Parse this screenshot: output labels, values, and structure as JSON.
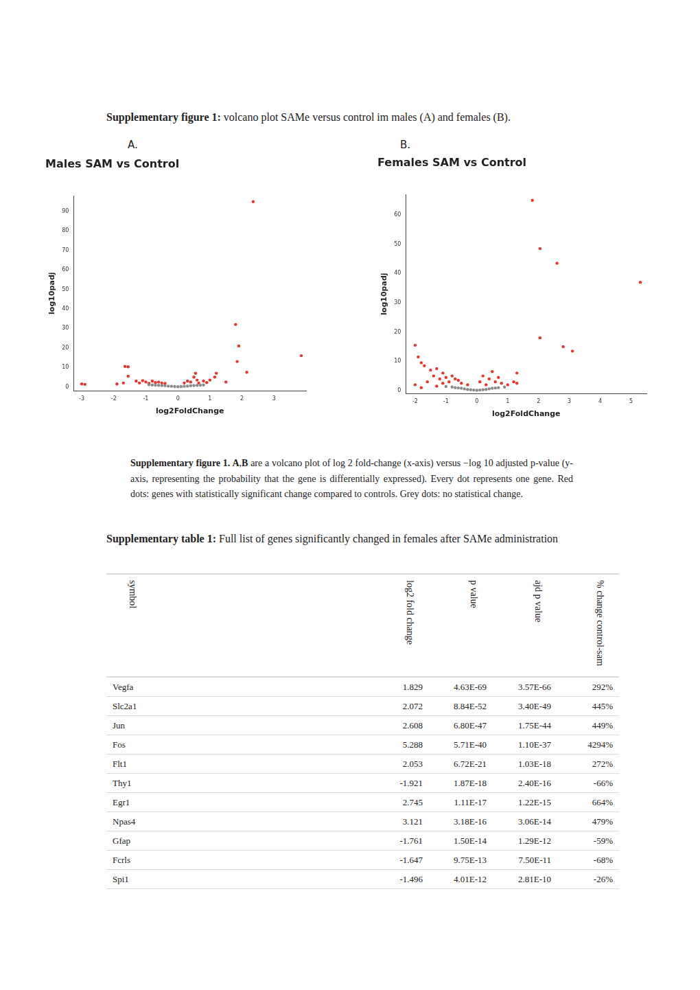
{
  "heading": {
    "bold": "Supplementary figure 1:",
    "text": " volcano plot SAMe versus control im males (A) and females (B)."
  },
  "panels": [
    "A.",
    "B."
  ],
  "chart_data": [
    {
      "type": "scatter",
      "title": "Males SAM vs Control",
      "x_label": "log2FoldChange",
      "y_label": "log10padj",
      "xlim": [
        -3.25,
        4.0
      ],
      "xticks": [
        -3,
        -2,
        -1,
        0,
        1,
        2,
        3
      ],
      "ylim": [
        -2,
        98
      ],
      "yticks": [
        0,
        10,
        20,
        30,
        40,
        50,
        60,
        70,
        80,
        90
      ],
      "grid": false,
      "marker": "circle",
      "series": [
        {
          "color": "#8a8a8a",
          "x": [
            -0.8,
            -0.6,
            -0.4,
            -0.2,
            0.0,
            0.2,
            0.4,
            0.6,
            0.3,
            -0.3,
            0.1,
            -0.1,
            -0.5,
            0.5,
            -0.7,
            0.7,
            -0.9,
            0.8
          ],
          "values": [
            1.0,
            0.8,
            0.6,
            0.3,
            0.1,
            0.3,
            0.6,
            0.8,
            0.4,
            0.4,
            0.2,
            0.2,
            0.7,
            0.7,
            0.9,
            0.9,
            1.1,
            1.0
          ]
        },
        {
          "color": "#e8352e",
          "x": [
            2.35,
            1.8,
            1.9,
            1.85,
            3.85,
            2.15,
            -1.65,
            -1.55,
            -1.55,
            -3.0,
            -2.9,
            -1.9,
            -1.7,
            -1.3,
            -1.0,
            -0.8,
            -0.6,
            -0.5,
            -1.2,
            -0.9,
            0.3,
            0.5,
            0.55,
            0.6,
            0.8,
            1.0,
            0.4,
            0.2,
            1.15,
            1.2,
            0.9,
            -0.4,
            0.65,
            1.5,
            -1.1,
            -0.7
          ],
          "values": [
            95,
            32,
            21,
            13,
            16,
            7.5,
            10.5,
            10.3,
            5.5,
            1.5,
            1.3,
            1.5,
            2.0,
            3.0,
            2.5,
            3.0,
            2.5,
            2.0,
            2.0,
            1.8,
            3.0,
            5.0,
            7.0,
            3.5,
            3.0,
            3.5,
            2.5,
            2.0,
            5.0,
            7.0,
            2.2,
            1.8,
            2.0,
            2.5,
            3.2,
            2.2
          ]
        }
      ]
    },
    {
      "type": "scatter",
      "title": "Females SAM vs Control",
      "x_label": "log2FoldChange",
      "y_label": "log10padj",
      "xlim": [
        -2.3,
        5.5
      ],
      "xticks": [
        -2,
        -1,
        0,
        1,
        2,
        3,
        4,
        5
      ],
      "ylim": [
        -1,
        67
      ],
      "yticks": [
        0,
        10,
        20,
        30,
        40,
        50,
        60
      ],
      "grid": false,
      "marker": "circle",
      "series": [
        {
          "color": "#8a8a8a",
          "x": [
            -0.8,
            -0.6,
            -0.4,
            -0.2,
            0.0,
            0.2,
            0.4,
            0.6,
            0.3,
            -0.3,
            0.1,
            -0.1,
            -0.5,
            0.5,
            -0.7,
            0.7,
            -1.0,
            0.9
          ],
          "values": [
            1.2,
            0.9,
            0.6,
            0.3,
            0.1,
            0.3,
            0.6,
            0.9,
            0.4,
            0.4,
            0.2,
            0.2,
            0.8,
            0.8,
            1.0,
            1.0,
            1.4,
            1.2
          ]
        },
        {
          "color": "#e8352e",
          "x": [
            1.8,
            2.05,
            2.6,
            5.3,
            2.05,
            2.8,
            3.1,
            -2.0,
            -1.9,
            -1.8,
            -1.7,
            -1.5,
            -1.3,
            -1.1,
            -2.0,
            -1.6,
            -1.4,
            -1.2,
            -1.0,
            -0.9,
            -0.8,
            -0.6,
            -0.5,
            -1.1,
            0.1,
            0.2,
            0.4,
            0.5,
            0.6,
            0.8,
            1.0,
            1.3,
            1.2,
            1.3,
            0.3,
            -0.3,
            -1.3,
            -1.8,
            -0.7,
            0.7
          ],
          "values": [
            65,
            48.5,
            43.5,
            37,
            18,
            15,
            13.5,
            15.5,
            11.5,
            9.5,
            8.5,
            7.0,
            7.5,
            6.0,
            2.0,
            3.0,
            5.0,
            4.0,
            4.5,
            3.0,
            5.0,
            3.5,
            2.5,
            2.5,
            3.0,
            5.0,
            4.0,
            6.5,
            3.0,
            2.5,
            2.0,
            6.0,
            3.0,
            2.5,
            2.0,
            2.0,
            1.5,
            1.0,
            4.0,
            4.5
          ]
        }
      ]
    }
  ],
  "caption": {
    "parts": [
      {
        "bold": true,
        "text": "Supplementary figure 1. A"
      },
      {
        "bold": false,
        "text": ","
      },
      {
        "bold": true,
        "text": "B"
      },
      {
        "bold": false,
        "text": " are a volcano plot of log 2 fold-change (x-axis) versus −log 10 adjusted p-value (y-axis, representing the probability that the gene is differentially expressed). Every dot represents one gene. Red dots: genes with statistically significant change compared to controls. Grey dots: no statistical change."
      }
    ]
  },
  "table_heading": {
    "bold": "Supplementary table 1:",
    "text": "  Full list of genes significantly changed in females after SAMe administration"
  },
  "table": {
    "header": [
      "symbol",
      "log2 fold change",
      "p value",
      "ajd p value",
      "% change control-sam"
    ],
    "rows": [
      [
        "Vegfa",
        "1.829",
        "4.63E-69",
        "3.57E-66",
        "292%"
      ],
      [
        "Slc2a1",
        "2.072",
        "8.84E-52",
        "3.40E-49",
        "445%"
      ],
      [
        "Jun",
        "2.608",
        "6.80E-47",
        "1.75E-44",
        "449%"
      ],
      [
        "Fos",
        "5.288",
        "5.71E-40",
        "1.10E-37",
        "4294%"
      ],
      [
        "Flt1",
        "2.053",
        "6.72E-21",
        "1.03E-18",
        "272%"
      ],
      [
        "Thy1",
        "-1.921",
        "1.87E-18",
        "2.40E-16",
        "-66%"
      ],
      [
        "Egr1",
        "2.745",
        "1.11E-17",
        "1.22E-15",
        "664%"
      ],
      [
        "Npas4",
        "3.121",
        "3.18E-16",
        "3.06E-14",
        "479%"
      ],
      [
        "Gfap",
        "-1.761",
        "1.50E-14",
        "1.29E-12",
        "-59%"
      ],
      [
        "Fcrls",
        "-1.647",
        "9.75E-13",
        "7.50E-11",
        "-68%"
      ],
      [
        "Spi1",
        "-1.496",
        "4.01E-12",
        "2.81E-10",
        "-26%"
      ]
    ]
  }
}
